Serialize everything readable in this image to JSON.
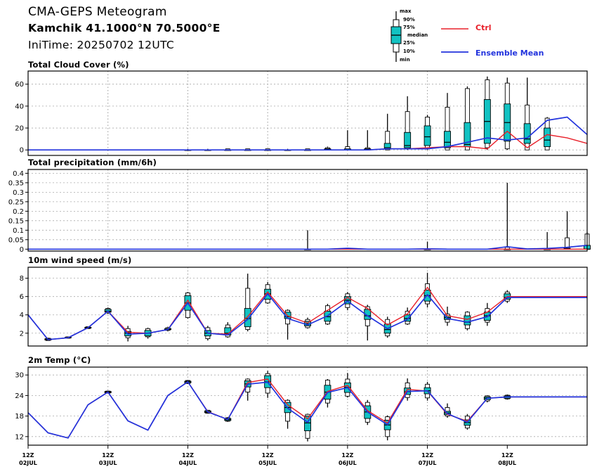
{
  "header": {
    "title": "CMA-GEPS Meteogram",
    "location": "Kamchik 41.1000°N 70.5000°E",
    "init_time": "IniTime: 20250702 12UTC"
  },
  "legend": {
    "box_labels": [
      "max",
      "90%",
      "75%",
      "median",
      "25%",
      "10%",
      "min"
    ],
    "ctrl_label": "Ctrl",
    "mean_label": "Ensemble Mean"
  },
  "colors": {
    "ctrl": "#e8202a",
    "mean": "#2233dd",
    "box_fill": "#12c2c2",
    "box_edge": "#000000",
    "grid": "#b0b0b0"
  },
  "x_axis": {
    "tick_labels": [
      {
        "time": "12Z",
        "date": "02JUL"
      },
      {
        "time": "12Z",
        "date": "03JUL"
      },
      {
        "time": "12Z",
        "date": "04JUL"
      },
      {
        "time": "12Z",
        "date": "05JUL"
      },
      {
        "time": "12Z",
        "date": "06JUL"
      },
      {
        "time": "12Z",
        "date": "07JUL"
      },
      {
        "time": "12Z",
        "date": "08JUL"
      }
    ]
  },
  "chart_data": [
    {
      "type": "box",
      "title": "Total Cloud Cover (%)",
      "ylim": [
        -5,
        72
      ],
      "yticks": [
        "0",
        "20",
        "40",
        "60"
      ],
      "x_hours": [
        0,
        6,
        12,
        18,
        24,
        30,
        36,
        42,
        48,
        54,
        60,
        66,
        72,
        78,
        84,
        90,
        96,
        102,
        108,
        114,
        120,
        126,
        132,
        138,
        144,
        150,
        156,
        162,
        168
      ],
      "ctrl": [
        0,
        0,
        0,
        0,
        0,
        0,
        0,
        0,
        0,
        0,
        0,
        0,
        0,
        0,
        0,
        0,
        0,
        0,
        1,
        1,
        2,
        3,
        3,
        1,
        17,
        2,
        14,
        11,
        6
      ],
      "mean": [
        0,
        0,
        0,
        0,
        0,
        0,
        0,
        0,
        0,
        0,
        0,
        0,
        0,
        0,
        0,
        0,
        0,
        0,
        1,
        1,
        1,
        3,
        7,
        11,
        9,
        11,
        27,
        30,
        14
      ],
      "boxes": [
        {
          "h": 48,
          "min": 0,
          "p10": 0,
          "p25": 0,
          "med": 0,
          "p75": 0,
          "p90": 0,
          "max": 1
        },
        {
          "h": 54,
          "min": 0,
          "p10": 0,
          "p25": 0,
          "med": 0,
          "p75": 0,
          "p90": 0,
          "max": 1
        },
        {
          "h": 60,
          "min": 0,
          "p10": 0,
          "p25": 0,
          "med": 0,
          "p75": 0,
          "p90": 1,
          "max": 1
        },
        {
          "h": 66,
          "min": 0,
          "p10": 0,
          "p25": 0,
          "med": 0,
          "p75": 0,
          "p90": 1,
          "max": 1
        },
        {
          "h": 72,
          "min": 0,
          "p10": 0,
          "p25": 0,
          "med": 0,
          "p75": 0,
          "p90": 1,
          "max": 1
        },
        {
          "h": 78,
          "min": 0,
          "p10": 0,
          "p25": 0,
          "med": 0,
          "p75": 0,
          "p90": 0,
          "max": 1
        },
        {
          "h": 84,
          "min": 0,
          "p10": 0,
          "p25": 0,
          "med": 0,
          "p75": 0,
          "p90": 1,
          "max": 1
        },
        {
          "h": 90,
          "min": 0,
          "p10": 0,
          "p25": 0,
          "med": 1,
          "p75": 1,
          "p90": 2,
          "max": 3
        },
        {
          "h": 96,
          "min": 0,
          "p10": 0,
          "p25": 0,
          "med": 0,
          "p75": 1,
          "p90": 3,
          "max": 18
        },
        {
          "h": 102,
          "min": 0,
          "p10": 0,
          "p25": 0,
          "med": 1,
          "p75": 1,
          "p90": 2,
          "max": 18
        },
        {
          "h": 108,
          "min": 0,
          "p10": 0,
          "p25": 1,
          "med": 2,
          "p75": 6,
          "p90": 17,
          "max": 33
        },
        {
          "h": 114,
          "min": 0,
          "p10": 1,
          "p25": 2,
          "med": 4,
          "p75": 16,
          "p90": 35,
          "max": 49
        },
        {
          "h": 120,
          "min": 0,
          "p10": 2,
          "p25": 4,
          "med": 12,
          "p75": 22,
          "p90": 30,
          "max": 32
        },
        {
          "h": 126,
          "min": 0,
          "p10": 0,
          "p25": 2,
          "med": 7,
          "p75": 17,
          "p90": 39,
          "max": 52
        },
        {
          "h": 132,
          "min": 0,
          "p10": 0,
          "p25": 3,
          "med": 5,
          "p75": 25,
          "p90": 56,
          "max": 58
        },
        {
          "h": 138,
          "min": 0,
          "p10": 2,
          "p25": 6,
          "med": 26,
          "p75": 46,
          "p90": 64,
          "max": 67
        },
        {
          "h": 144,
          "min": 0,
          "p10": 1,
          "p25": 8,
          "med": 25,
          "p75": 42,
          "p90": 61,
          "max": 66
        },
        {
          "h": 150,
          "min": 0,
          "p10": 0,
          "p25": 6,
          "med": 10,
          "p75": 24,
          "p90": 41,
          "max": 66
        },
        {
          "h": 156,
          "min": 0,
          "p10": 0,
          "p25": 3,
          "med": 9,
          "p75": 20,
          "p90": 29,
          "max": 30
        }
      ]
    },
    {
      "type": "box",
      "title": "Total precipitation (mm/6h)",
      "ylim": [
        -0.01,
        0.42
      ],
      "yticks": [
        "0",
        "0.05",
        "0.1",
        "0.15",
        "0.2",
        "0.25",
        "0.3",
        "0.35",
        "0.4"
      ],
      "x_hours": [
        0,
        6,
        12,
        18,
        24,
        30,
        36,
        42,
        48,
        54,
        60,
        66,
        72,
        78,
        84,
        90,
        96,
        102,
        108,
        114,
        120,
        126,
        132,
        138,
        144,
        150,
        156,
        162,
        168
      ],
      "ctrl": [
        0,
        0,
        0,
        0,
        0,
        0,
        0,
        0,
        0,
        0,
        0,
        0,
        0,
        0,
        0,
        0,
        0,
        0,
        0,
        0,
        0,
        0,
        0,
        0,
        0,
        0,
        0,
        0,
        0
      ],
      "mean": [
        0,
        0,
        0,
        0,
        0,
        0,
        0,
        0,
        0,
        0,
        0,
        0,
        0,
        0,
        0,
        0,
        0.005,
        0,
        0,
        0,
        0.002,
        0,
        0,
        0,
        0.013,
        0.001,
        0.004,
        0.01,
        0.02
      ],
      "boxes": [
        {
          "h": 84,
          "min": 0,
          "p10": 0,
          "p25": 0,
          "med": 0,
          "p75": 0,
          "p90": 0,
          "max": 0.1
        },
        {
          "h": 120,
          "min": 0,
          "p10": 0,
          "p25": 0,
          "med": 0,
          "p75": 0,
          "p90": 0,
          "max": 0.04
        },
        {
          "h": 144,
          "min": 0,
          "p10": 0,
          "p25": 0,
          "med": 0,
          "p75": 0,
          "p90": 0.01,
          "max": 0.35
        },
        {
          "h": 156,
          "min": 0,
          "p10": 0,
          "p25": 0,
          "med": 0,
          "p75": 0,
          "p90": 0.005,
          "max": 0.09
        },
        {
          "h": 162,
          "min": 0,
          "p10": 0,
          "p25": 0,
          "med": 0,
          "p75": 0.005,
          "p90": 0.06,
          "max": 0.2
        },
        {
          "h": 168,
          "min": 0,
          "p10": 0,
          "p25": 0,
          "med": 0,
          "p75": 0.02,
          "p90": 0.08,
          "max": 0.09
        }
      ]
    },
    {
      "type": "box",
      "title": "10m wind speed (m/s)",
      "ylim": [
        0.6,
        9.2
      ],
      "yticks": [
        "2",
        "4",
        "6",
        "8"
      ],
      "x_hours": [
        0,
        6,
        12,
        18,
        24,
        30,
        36,
        42,
        48,
        54,
        60,
        66,
        72,
        78,
        84,
        90,
        96,
        102,
        108,
        114,
        120,
        126,
        132,
        138,
        144,
        150,
        156,
        162,
        168
      ],
      "ctrl": [
        4.0,
        1.3,
        1.5,
        2.6,
        4.4,
        2.1,
        2.0,
        2.4,
        5.6,
        2.0,
        1.9,
        3.8,
        6.5,
        3.9,
        3.1,
        4.5,
        5.9,
        4.7,
        2.9,
        4.1,
        7.0,
        3.9,
        3.5,
        4.3,
        6.0,
        6.0,
        6.0,
        6.0,
        6.0
      ],
      "mean": [
        4.0,
        1.3,
        1.5,
        2.6,
        4.4,
        1.9,
        2.0,
        2.4,
        5.3,
        2.0,
        1.8,
        3.5,
        6.3,
        3.6,
        2.9,
        3.9,
        5.5,
        3.9,
        2.5,
        3.5,
        6.2,
        3.6,
        3.2,
        3.8,
        5.9,
        5.9,
        5.9,
        5.9,
        5.9
      ],
      "boxes": [
        {
          "h": 6,
          "min": 1.2,
          "p10": 1.2,
          "p25": 1.25,
          "med": 1.3,
          "p75": 1.4,
          "p90": 1.45,
          "max": 1.5
        },
        {
          "h": 12,
          "min": 1.4,
          "p10": 1.45,
          "p25": 1.5,
          "med": 1.5,
          "p75": 1.55,
          "p90": 1.6,
          "max": 1.6
        },
        {
          "h": 18,
          "min": 2.5,
          "p10": 2.5,
          "p25": 2.55,
          "med": 2.6,
          "p75": 2.65,
          "p90": 2.7,
          "max": 2.7
        },
        {
          "h": 24,
          "min": 4.1,
          "p10": 4.2,
          "p25": 4.3,
          "med": 4.4,
          "p75": 4.6,
          "p90": 4.7,
          "max": 4.8
        },
        {
          "h": 30,
          "min": 1.1,
          "p10": 1.5,
          "p25": 1.7,
          "med": 2.0,
          "p75": 2.2,
          "p90": 2.5,
          "max": 2.8
        },
        {
          "h": 36,
          "min": 1.4,
          "p10": 1.6,
          "p25": 1.7,
          "med": 2.0,
          "p75": 2.3,
          "p90": 2.5,
          "max": 2.6
        },
        {
          "h": 42,
          "min": 2.2,
          "p10": 2.3,
          "p25": 2.4,
          "med": 2.4,
          "p75": 2.5,
          "p90": 2.6,
          "max": 2.7
        },
        {
          "h": 48,
          "min": 3.6,
          "p10": 3.7,
          "p25": 4.5,
          "med": 5.3,
          "p75": 6.1,
          "p90": 6.4,
          "max": 6.5
        },
        {
          "h": 54,
          "min": 1.2,
          "p10": 1.4,
          "p25": 1.7,
          "med": 2.0,
          "p75": 2.3,
          "p90": 2.6,
          "max": 2.8
        },
        {
          "h": 60,
          "min": 1.5,
          "p10": 1.6,
          "p25": 1.8,
          "med": 2.0,
          "p75": 2.6,
          "p90": 2.9,
          "max": 3.2
        },
        {
          "h": 66,
          "min": 2.2,
          "p10": 2.4,
          "p25": 2.7,
          "med": 3.6,
          "p75": 4.7,
          "p90": 6.9,
          "max": 8.5
        },
        {
          "h": 72,
          "min": 5.2,
          "p10": 5.3,
          "p25": 5.7,
          "med": 6.3,
          "p75": 6.8,
          "p90": 7.3,
          "max": 7.6
        },
        {
          "h": 78,
          "min": 1.3,
          "p10": 3.0,
          "p25": 3.6,
          "med": 3.8,
          "p75": 4.3,
          "p90": 4.5,
          "max": 4.6
        },
        {
          "h": 84,
          "min": 2.5,
          "p10": 2.6,
          "p25": 2.8,
          "med": 3.0,
          "p75": 3.3,
          "p90": 3.5,
          "max": 3.7
        },
        {
          "h": 90,
          "min": 2.9,
          "p10": 3.0,
          "p25": 3.3,
          "med": 3.8,
          "p75": 4.4,
          "p90": 5.0,
          "max": 5.2
        },
        {
          "h": 96,
          "min": 4.5,
          "p10": 4.8,
          "p25": 5.2,
          "med": 5.6,
          "p75": 6.0,
          "p90": 6.3,
          "max": 6.5
        },
        {
          "h": 102,
          "min": 1.2,
          "p10": 2.8,
          "p25": 3.5,
          "med": 3.9,
          "p75": 4.6,
          "p90": 4.9,
          "max": 5.1
        },
        {
          "h": 108,
          "min": 1.5,
          "p10": 1.7,
          "p25": 2.0,
          "med": 2.4,
          "p75": 3.0,
          "p90": 3.5,
          "max": 3.8
        },
        {
          "h": 114,
          "min": 2.9,
          "p10": 3.0,
          "p25": 3.3,
          "med": 3.6,
          "p75": 4.0,
          "p90": 4.4,
          "max": 4.8
        },
        {
          "h": 120,
          "min": 4.8,
          "p10": 5.2,
          "p25": 5.5,
          "med": 6.1,
          "p75": 6.7,
          "p90": 7.4,
          "max": 8.6
        },
        {
          "h": 126,
          "min": 2.8,
          "p10": 3.2,
          "p25": 3.5,
          "med": 3.7,
          "p75": 3.9,
          "p90": 4.1,
          "max": 4.9
        },
        {
          "h": 132,
          "min": 2.3,
          "p10": 2.5,
          "p25": 2.9,
          "med": 3.2,
          "p75": 3.9,
          "p90": 4.3,
          "max": 4.4
        },
        {
          "h": 138,
          "min": 2.8,
          "p10": 3.2,
          "p25": 3.4,
          "med": 3.9,
          "p75": 4.3,
          "p90": 4.7,
          "max": 5.3
        },
        {
          "h": 144,
          "min": 5.3,
          "p10": 5.5,
          "p25": 5.7,
          "med": 5.9,
          "p75": 6.3,
          "p90": 6.5,
          "max": 6.7
        }
      ]
    },
    {
      "type": "box",
      "title": "2m Temp (°C)",
      "ylim": [
        9.5,
        32.3
      ],
      "yticks": [
        "12",
        "18",
        "24",
        "30"
      ],
      "x_hours": [
        0,
        6,
        12,
        18,
        24,
        30,
        36,
        42,
        48,
        54,
        60,
        66,
        72,
        78,
        84,
        90,
        96,
        102,
        108,
        114,
        120,
        126,
        132,
        138,
        144,
        150,
        156,
        162,
        168
      ],
      "ctrl": [
        19.0,
        13.1,
        11.6,
        21.3,
        25.0,
        16.6,
        13.9,
        24.0,
        28.0,
        19.3,
        17.0,
        27.8,
        28.8,
        21.3,
        17.2,
        25.2,
        27.0,
        19.6,
        16.0,
        25.8,
        25.3,
        18.5,
        16.5,
        23.2,
        23.6,
        23.6,
        23.6,
        23.6,
        23.6
      ],
      "mean": [
        19.0,
        13.1,
        11.6,
        21.3,
        25.0,
        16.6,
        13.9,
        24.0,
        28.0,
        19.2,
        17.0,
        27.3,
        27.9,
        20.3,
        16.2,
        24.9,
        26.3,
        19.2,
        15.5,
        25.2,
        25.4,
        18.7,
        16.2,
        23.2,
        23.6,
        23.6,
        23.6,
        23.6,
        23.6
      ],
      "boxes": [
        {
          "h": 24,
          "min": 24.6,
          "p10": 24.7,
          "p25": 24.8,
          "med": 25.0,
          "p75": 25.2,
          "p90": 25.3,
          "max": 25.4
        },
        {
          "h": 48,
          "min": 27.4,
          "p10": 27.5,
          "p25": 27.7,
          "med": 28.0,
          "p75": 28.2,
          "p90": 28.4,
          "max": 28.5
        },
        {
          "h": 54,
          "min": 18.7,
          "p10": 18.8,
          "p25": 19.0,
          "med": 19.2,
          "p75": 19.5,
          "p90": 19.7,
          "max": 19.8
        },
        {
          "h": 60,
          "min": 16.3,
          "p10": 16.5,
          "p25": 16.7,
          "med": 17.0,
          "p75": 17.3,
          "p90": 17.5,
          "max": 17.7
        },
        {
          "h": 66,
          "min": 22.5,
          "p10": 25.0,
          "p25": 26.5,
          "med": 27.4,
          "p75": 28.3,
          "p90": 28.8,
          "max": 29.0
        },
        {
          "h": 72,
          "min": 23.3,
          "p10": 24.7,
          "p25": 26.3,
          "med": 28.0,
          "p75": 29.8,
          "p90": 30.4,
          "max": 31.2
        },
        {
          "h": 78,
          "min": 14.3,
          "p10": 16.5,
          "p25": 19.0,
          "med": 20.5,
          "p75": 22.0,
          "p90": 22.6,
          "max": 22.9
        },
        {
          "h": 84,
          "min": 10.6,
          "p10": 11.5,
          "p25": 13.7,
          "med": 16.0,
          "p75": 18.0,
          "p90": 18.5,
          "max": 18.7
        },
        {
          "h": 90,
          "min": 20.5,
          "p10": 21.8,
          "p25": 22.9,
          "med": 25.0,
          "p75": 27.0,
          "p90": 28.5,
          "max": 28.8
        },
        {
          "h": 96,
          "min": 23.4,
          "p10": 23.8,
          "p25": 24.9,
          "med": 26.4,
          "p75": 27.7,
          "p90": 28.8,
          "max": 30.6
        },
        {
          "h": 102,
          "min": 15.4,
          "p10": 16.2,
          "p25": 17.3,
          "med": 19.2,
          "p75": 21.0,
          "p90": 22.0,
          "max": 22.7
        },
        {
          "h": 108,
          "min": 10.9,
          "p10": 12.0,
          "p25": 14.0,
          "med": 15.4,
          "p75": 16.8,
          "p90": 17.8,
          "max": 18.2
        },
        {
          "h": 114,
          "min": 22.5,
          "p10": 23.4,
          "p25": 24.3,
          "med": 25.1,
          "p75": 26.2,
          "p90": 27.7,
          "max": 29.0
        },
        {
          "h": 120,
          "min": 22.5,
          "p10": 23.3,
          "p25": 24.5,
          "med": 25.4,
          "p75": 26.3,
          "p90": 27.3,
          "max": 28.0
        },
        {
          "h": 126,
          "min": 17.5,
          "p10": 18.0,
          "p25": 18.4,
          "med": 18.9,
          "p75": 19.4,
          "p90": 20.5,
          "max": 21.7
        },
        {
          "h": 132,
          "min": 14.0,
          "p10": 14.5,
          "p25": 15.3,
          "med": 16.1,
          "p75": 16.9,
          "p90": 18.0,
          "max": 18.6
        },
        {
          "h": 138,
          "min": 22.0,
          "p10": 22.4,
          "p25": 22.8,
          "med": 23.2,
          "p75": 23.6,
          "p90": 23.9,
          "max": 24.1
        },
        {
          "h": 144,
          "min": 22.8,
          "p10": 23.0,
          "p25": 23.2,
          "med": 23.6,
          "p75": 23.9,
          "p90": 24.1,
          "max": 24.3
        }
      ]
    }
  ]
}
